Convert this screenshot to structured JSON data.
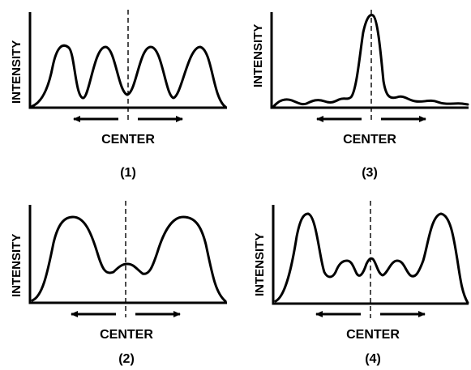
{
  "panels": [
    {
      "id": "1",
      "ylabel": "INTENSITY",
      "center_label": "CENTER",
      "caption": "(1)"
    },
    {
      "id": "3",
      "ylabel": "INTENSITY",
      "center_label": "CENTER",
      "caption": "(3)"
    },
    {
      "id": "2",
      "ylabel": "INTENSITY",
      "center_label": "CENTER",
      "caption": "(2)"
    },
    {
      "id": "4",
      "ylabel": "INTENSITY",
      "center_label": "CENTER",
      "caption": "(4)"
    }
  ]
}
